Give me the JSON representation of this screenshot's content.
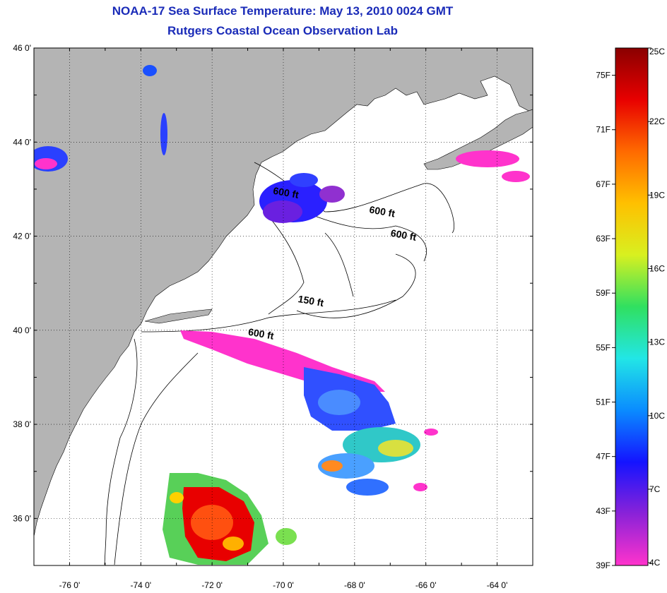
{
  "title": {
    "line1": "NOAA-17 Sea Surface Temperature:  May 13, 2010 0024 GMT",
    "line2": "Rutgers Coastal Ocean Observation Lab"
  },
  "map": {
    "lon_range": [
      -77,
      -63
    ],
    "lat_range": [
      35,
      46
    ],
    "lat_ticks": [
      {
        "value": 46,
        "label": "46 0'"
      },
      {
        "value": 44,
        "label": "44 0'"
      },
      {
        "value": 42,
        "label": "42 0'"
      },
      {
        "value": 40,
        "label": "40 0'"
      },
      {
        "value": 38,
        "label": "38 0'"
      },
      {
        "value": 36,
        "label": "36 0'"
      }
    ],
    "lon_ticks": [
      {
        "value": -76,
        "label": "-76 0'"
      },
      {
        "value": -74,
        "label": "-74 0'"
      },
      {
        "value": -72,
        "label": "-72 0'"
      },
      {
        "value": -70,
        "label": "-70 0'"
      },
      {
        "value": -68,
        "label": "-68 0'"
      },
      {
        "value": -66,
        "label": "-66 0'"
      },
      {
        "value": -64,
        "label": "-64 0'"
      }
    ],
    "contour_labels": [
      {
        "text": "600 ft",
        "lon": -70.3,
        "lat": 42.9
      },
      {
        "text": "600 ft",
        "lon": -67.6,
        "lat": 42.5
      },
      {
        "text": "600 ft",
        "lon": -67.0,
        "lat": 42.0
      },
      {
        "text": "150 ft",
        "lon": -69.6,
        "lat": 40.6
      },
      {
        "text": "600 ft",
        "lon": -71.0,
        "lat": 39.9
      }
    ]
  },
  "colorbar": {
    "fahrenheit_labels": [
      "75F",
      "71F",
      "67F",
      "63F",
      "59F",
      "55F",
      "51F",
      "47F",
      "43F",
      "39F"
    ],
    "celsius_labels": [
      "25C",
      "22C",
      "19C",
      "16C",
      "13C",
      "10C",
      "7C",
      "4C"
    ],
    "f_range": [
      39,
      77
    ],
    "colors": [
      "#ff33cc",
      "#8a22d8",
      "#1414ff",
      "#0a8cff",
      "#22e6e6",
      "#30e060",
      "#d8f020",
      "#ffc000",
      "#ff6a00",
      "#e80000",
      "#8a0000"
    ]
  }
}
